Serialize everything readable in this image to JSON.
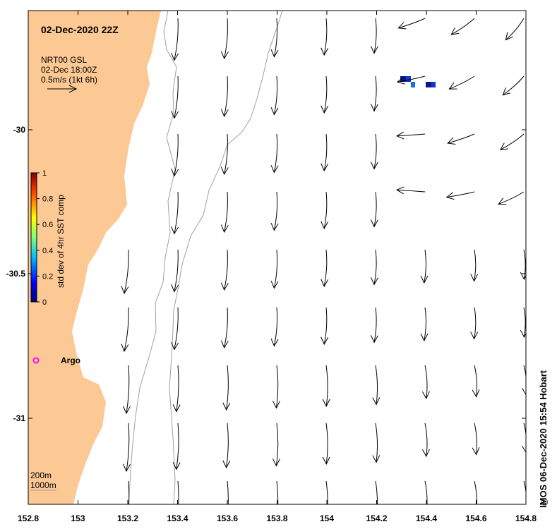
{
  "map": {
    "title": "02-Dec-2020 22Z",
    "legend": {
      "product": "NRT00 GSL",
      "time": "02-Dec 18:00Z",
      "scale": "0.5m/s (1kt 6h)"
    },
    "colorbar": {
      "label": "std dev of 4hr SST comp",
      "ticks": [
        "1",
        "0.8",
        "0.6",
        "0.4",
        "0.2",
        "0"
      ]
    },
    "argo_label": "Argo",
    "isobath_labels": [
      "200m",
      "1000m"
    ],
    "x_ticks": [
      "152.8",
      "153",
      "153.2",
      "153.4",
      "153.6",
      "153.8",
      "154",
      "154.2",
      "154.4",
      "154.6",
      "154.8"
    ],
    "y_ticks": [
      "-30",
      "-30.5",
      "-31"
    ],
    "credit": "IMOS 06-Dec-2020 15:54 Hobart",
    "colors": {
      "land": "#fcc994",
      "argo": "#ff00ff",
      "isobath": "#a0a0a0",
      "sst_pixel": "#1038c8"
    }
  }
}
